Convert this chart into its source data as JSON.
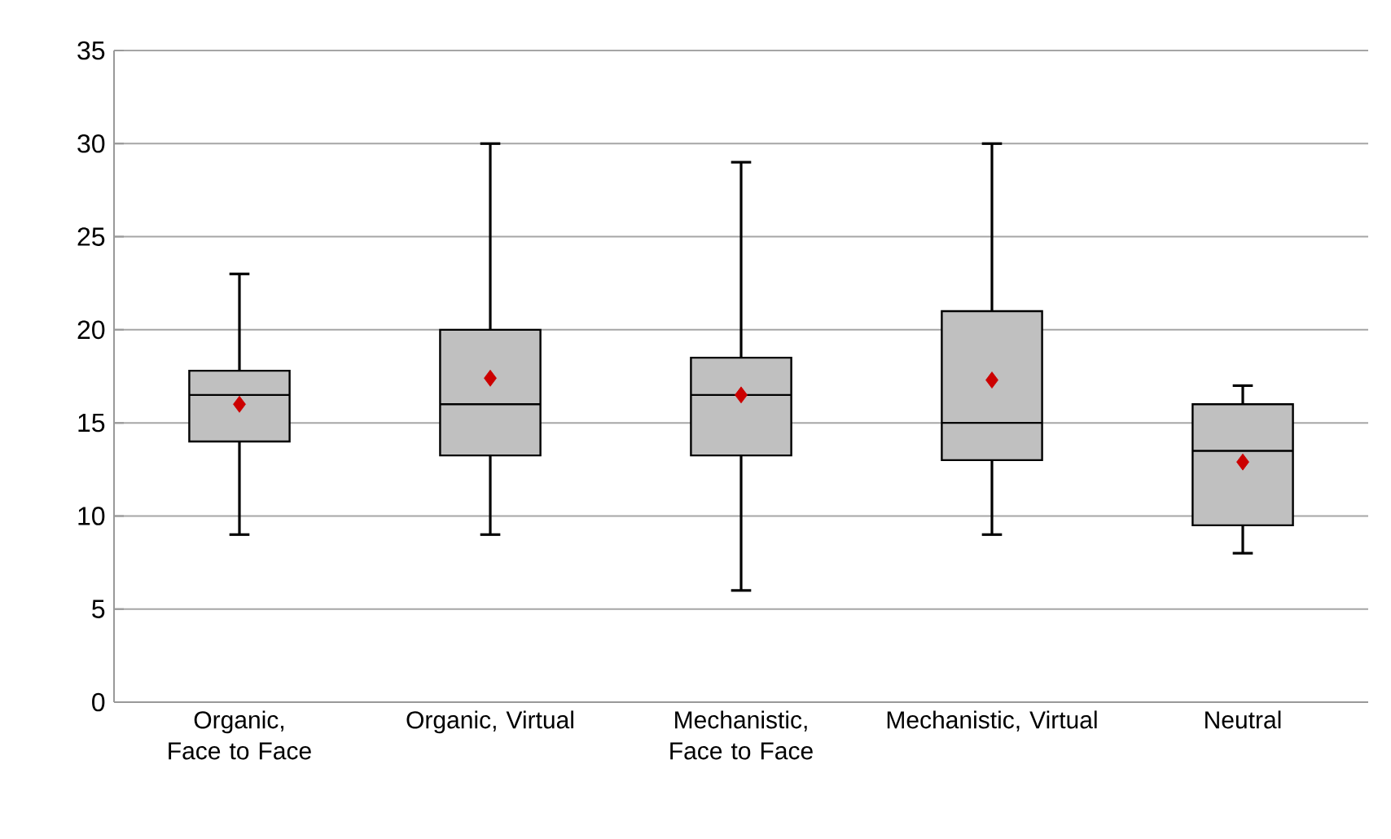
{
  "chart_data": {
    "type": "box",
    "categories": [
      "Organic, Face to Face",
      "Organic, Virtual",
      "Mechanistic, Face to Face",
      "Mechanistic, Virtual",
      "Neutral"
    ],
    "boxes": [
      {
        "low": 9,
        "q1": 14,
        "median": 16.5,
        "q3": 17.8,
        "high": 23,
        "mean": 16
      },
      {
        "low": 9,
        "q1": 13.25,
        "median": 16,
        "q3": 20,
        "high": 30,
        "mean": 17.4
      },
      {
        "low": 6,
        "q1": 13.25,
        "median": 16.5,
        "q3": 18.5,
        "high": 29,
        "mean": 16.5
      },
      {
        "low": 9,
        "q1": 13,
        "median": 15,
        "q3": 21,
        "high": 30,
        "mean": 17.3
      },
      {
        "low": 8,
        "q1": 9.5,
        "median": 13.5,
        "q3": 16,
        "high": 17,
        "mean": 12.9
      }
    ],
    "color": "#c0c0c0",
    "marker": "diamond",
    "ylim": [
      0,
      35
    ],
    "yticks": [
      0,
      5,
      10,
      15,
      20,
      25,
      30,
      35
    ],
    "grid": "y"
  }
}
